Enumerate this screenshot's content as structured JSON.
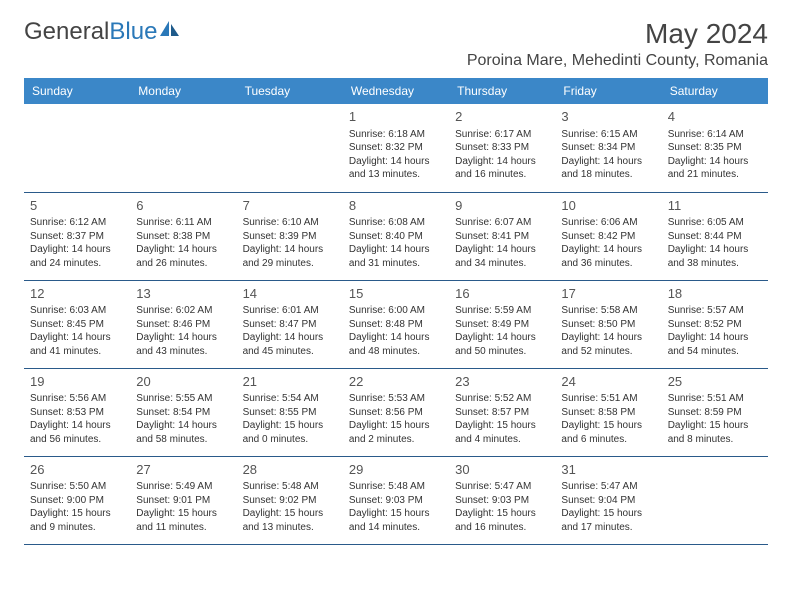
{
  "logo": {
    "text1": "General",
    "text2": "Blue"
  },
  "title": "May 2024",
  "location": "Poroina Mare, Mehedinti County, Romania",
  "day_headers": [
    "Sunday",
    "Monday",
    "Tuesday",
    "Wednesday",
    "Thursday",
    "Friday",
    "Saturday"
  ],
  "colors": {
    "header_bg": "#3b87c8",
    "header_text": "#ffffff",
    "row_divider": "#2a5a8a",
    "logo_blue": "#2a78b8",
    "text": "#333333",
    "background": "#ffffff"
  },
  "weeks": [
    [
      null,
      null,
      null,
      {
        "n": "1",
        "sr": "6:18 AM",
        "ss": "8:32 PM",
        "dl": "14 hours and 13 minutes."
      },
      {
        "n": "2",
        "sr": "6:17 AM",
        "ss": "8:33 PM",
        "dl": "14 hours and 16 minutes."
      },
      {
        "n": "3",
        "sr": "6:15 AM",
        "ss": "8:34 PM",
        "dl": "14 hours and 18 minutes."
      },
      {
        "n": "4",
        "sr": "6:14 AM",
        "ss": "8:35 PM",
        "dl": "14 hours and 21 minutes."
      }
    ],
    [
      {
        "n": "5",
        "sr": "6:12 AM",
        "ss": "8:37 PM",
        "dl": "14 hours and 24 minutes."
      },
      {
        "n": "6",
        "sr": "6:11 AM",
        "ss": "8:38 PM",
        "dl": "14 hours and 26 minutes."
      },
      {
        "n": "7",
        "sr": "6:10 AM",
        "ss": "8:39 PM",
        "dl": "14 hours and 29 minutes."
      },
      {
        "n": "8",
        "sr": "6:08 AM",
        "ss": "8:40 PM",
        "dl": "14 hours and 31 minutes."
      },
      {
        "n": "9",
        "sr": "6:07 AM",
        "ss": "8:41 PM",
        "dl": "14 hours and 34 minutes."
      },
      {
        "n": "10",
        "sr": "6:06 AM",
        "ss": "8:42 PM",
        "dl": "14 hours and 36 minutes."
      },
      {
        "n": "11",
        "sr": "6:05 AM",
        "ss": "8:44 PM",
        "dl": "14 hours and 38 minutes."
      }
    ],
    [
      {
        "n": "12",
        "sr": "6:03 AM",
        "ss": "8:45 PM",
        "dl": "14 hours and 41 minutes."
      },
      {
        "n": "13",
        "sr": "6:02 AM",
        "ss": "8:46 PM",
        "dl": "14 hours and 43 minutes."
      },
      {
        "n": "14",
        "sr": "6:01 AM",
        "ss": "8:47 PM",
        "dl": "14 hours and 45 minutes."
      },
      {
        "n": "15",
        "sr": "6:00 AM",
        "ss": "8:48 PM",
        "dl": "14 hours and 48 minutes."
      },
      {
        "n": "16",
        "sr": "5:59 AM",
        "ss": "8:49 PM",
        "dl": "14 hours and 50 minutes."
      },
      {
        "n": "17",
        "sr": "5:58 AM",
        "ss": "8:50 PM",
        "dl": "14 hours and 52 minutes."
      },
      {
        "n": "18",
        "sr": "5:57 AM",
        "ss": "8:52 PM",
        "dl": "14 hours and 54 minutes."
      }
    ],
    [
      {
        "n": "19",
        "sr": "5:56 AM",
        "ss": "8:53 PM",
        "dl": "14 hours and 56 minutes."
      },
      {
        "n": "20",
        "sr": "5:55 AM",
        "ss": "8:54 PM",
        "dl": "14 hours and 58 minutes."
      },
      {
        "n": "21",
        "sr": "5:54 AM",
        "ss": "8:55 PM",
        "dl": "15 hours and 0 minutes."
      },
      {
        "n": "22",
        "sr": "5:53 AM",
        "ss": "8:56 PM",
        "dl": "15 hours and 2 minutes."
      },
      {
        "n": "23",
        "sr": "5:52 AM",
        "ss": "8:57 PM",
        "dl": "15 hours and 4 minutes."
      },
      {
        "n": "24",
        "sr": "5:51 AM",
        "ss": "8:58 PM",
        "dl": "15 hours and 6 minutes."
      },
      {
        "n": "25",
        "sr": "5:51 AM",
        "ss": "8:59 PM",
        "dl": "15 hours and 8 minutes."
      }
    ],
    [
      {
        "n": "26",
        "sr": "5:50 AM",
        "ss": "9:00 PM",
        "dl": "15 hours and 9 minutes."
      },
      {
        "n": "27",
        "sr": "5:49 AM",
        "ss": "9:01 PM",
        "dl": "15 hours and 11 minutes."
      },
      {
        "n": "28",
        "sr": "5:48 AM",
        "ss": "9:02 PM",
        "dl": "15 hours and 13 minutes."
      },
      {
        "n": "29",
        "sr": "5:48 AM",
        "ss": "9:03 PM",
        "dl": "15 hours and 14 minutes."
      },
      {
        "n": "30",
        "sr": "5:47 AM",
        "ss": "9:03 PM",
        "dl": "15 hours and 16 minutes."
      },
      {
        "n": "31",
        "sr": "5:47 AM",
        "ss": "9:04 PM",
        "dl": "15 hours and 17 minutes."
      },
      null
    ]
  ]
}
